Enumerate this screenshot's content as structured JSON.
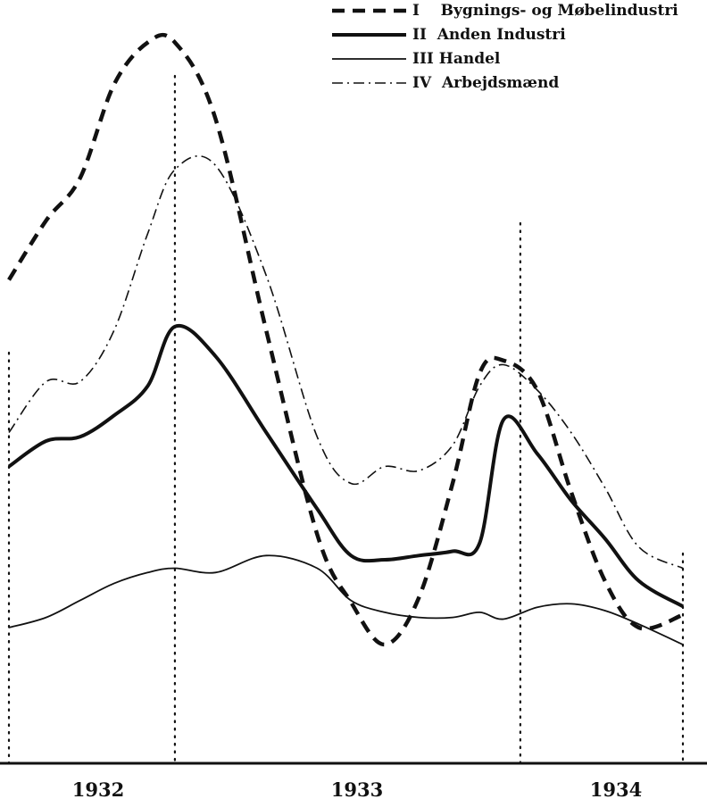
{
  "chart_data": {
    "type": "line",
    "title": "",
    "xlabel": "",
    "ylabel": "",
    "x_tick_labels": [
      "1932",
      "1933",
      "1934"
    ],
    "x": [
      1931.99,
      1932.1,
      1932.2,
      1932.3,
      1932.4,
      1932.48,
      1932.6,
      1932.75,
      1932.9,
      1933.0,
      1933.1,
      1933.2,
      1933.3,
      1933.38,
      1933.45,
      1933.55,
      1933.65,
      1933.75,
      1933.85,
      1933.98
    ],
    "xlim": [
      1931.99,
      1933.98
    ],
    "ylim": [
      0,
      900
    ],
    "grid": false,
    "legend_position": "top-right",
    "vertical_markers": [
      1931.99,
      1932.48,
      1933.5,
      1933.98
    ],
    "series": [
      {
        "name": "I    Bygnings- og Møbelindustri",
        "style": "dashed-heavy",
        "values": [
          570,
          640,
          690,
          800,
          850,
          850,
          760,
          510,
          270,
          190,
          140,
          195,
          330,
          460,
          475,
          440,
          320,
          215,
          160,
          175
        ]
      },
      {
        "name": "II  Anden Industri",
        "style": "solid-heavy",
        "values": [
          350,
          380,
          385,
          410,
          445,
          515,
          480,
          390,
          300,
          245,
          240,
          245,
          250,
          260,
          405,
          365,
          310,
          265,
          215,
          185
        ]
      },
      {
        "name": "III Handel",
        "style": "solid-thin",
        "values": [
          160,
          172,
          192,
          212,
          225,
          230,
          225,
          245,
          230,
          192,
          178,
          172,
          172,
          178,
          170,
          184,
          188,
          180,
          164,
          140
        ]
      },
      {
        "name": "IV  Arbejdsmænd",
        "style": "dash-dot",
        "values": [
          390,
          450,
          450,
          510,
          625,
          700,
          705,
          575,
          385,
          330,
          350,
          345,
          375,
          445,
          470,
          440,
          390,
          325,
          255,
          230
        ]
      }
    ]
  }
}
